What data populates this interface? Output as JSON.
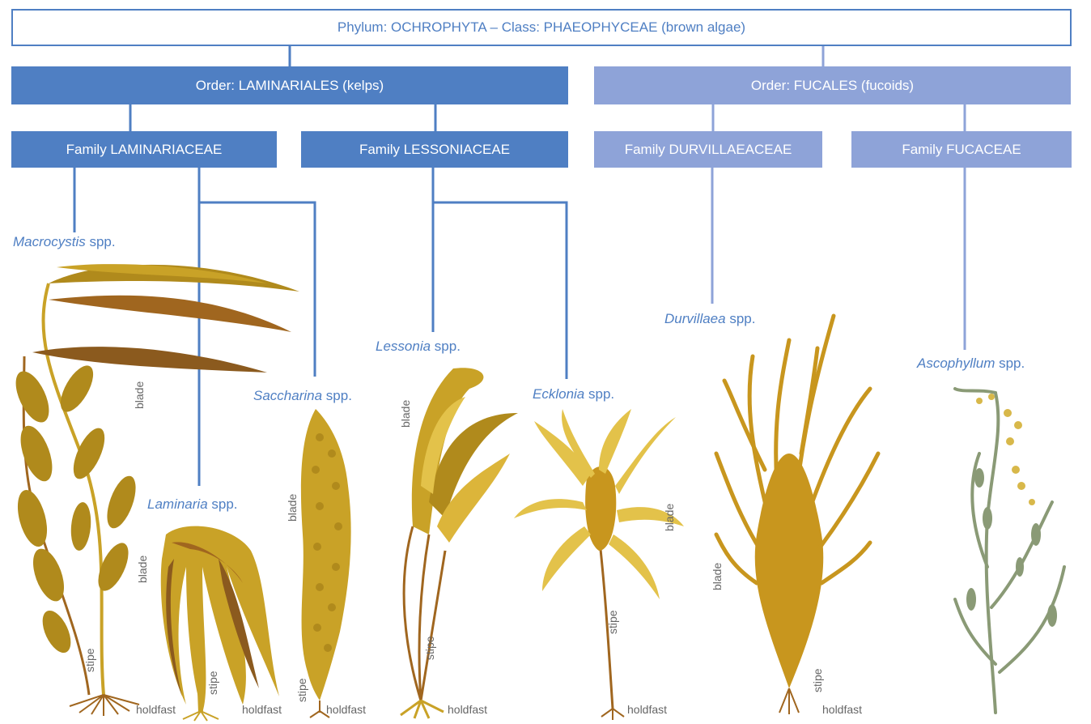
{
  "tree": {
    "phylum": "Phylum: OCHROPHYTA – Class: PHAEOPHYCEAE (brown algae)",
    "orders": {
      "laminariales": "Order: LAMINARIALES (kelps)",
      "fucales": "Order: FUCALES (fucoids)"
    },
    "families": {
      "laminariaceae": "Family LAMINARIACEAE",
      "lessoniaceae": "Family LESSONIACEAE",
      "durvillaeaceae": "Family DURVILLAEACEAE",
      "fucaceae": "Family FUCACEAE"
    },
    "species": {
      "macrocystis": {
        "genus": "Macrocystis",
        "suffix": " spp."
      },
      "laminaria": {
        "genus": "Laminaria",
        "suffix": " spp."
      },
      "saccharina": {
        "genus": "Saccharina",
        "suffix": " spp."
      },
      "lessonia": {
        "genus": "Lessonia",
        "suffix": " spp."
      },
      "ecklonia": {
        "genus": "Ecklonia",
        "suffix": " spp."
      },
      "durvillaea": {
        "genus": "Durvillaea",
        "suffix": " spp."
      },
      "ascophyllum": {
        "genus": "Ascophyllum",
        "suffix": " spp."
      }
    }
  },
  "parts": {
    "blade": "blade",
    "stipe": "stipe",
    "holdfast": "holdfast"
  },
  "colors": {
    "laminariales": "#4f7fc3",
    "fucales": "#8ea3d8",
    "label_text": "#666666",
    "alga_gold": "#c9a227",
    "alga_brown": "#a0661f",
    "alga_ochre": "#c8961e",
    "fucoid_green": "#8a9a76"
  }
}
